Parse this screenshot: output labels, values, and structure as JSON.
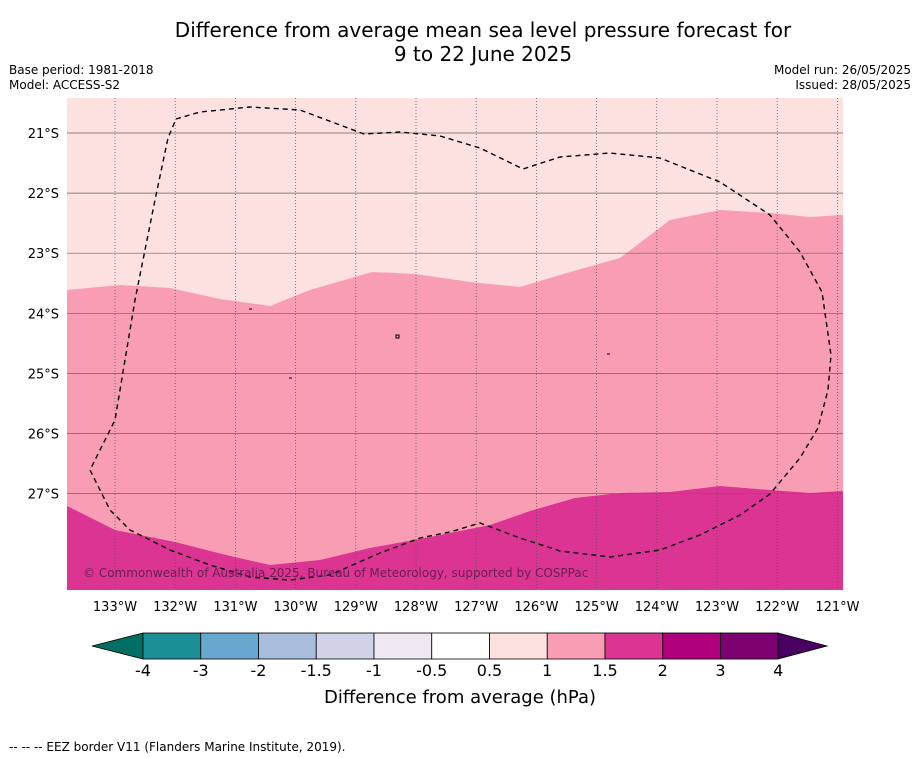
{
  "header": {
    "title_line1": "Difference from average mean sea level pressure forecast for",
    "title_line2": "9 to 22 June 2025",
    "base_period": "Base period: 1981-2018",
    "model": "Model: ACCESS-S2",
    "model_run": "Model run: 26/05/2025",
    "issued": "Issued: 28/05/2025"
  },
  "map": {
    "lon_labels": [
      "133°W",
      "132°W",
      "131°W",
      "130°W",
      "129°W",
      "128°W",
      "127°W",
      "126°W",
      "125°W",
      "124°W",
      "123°W",
      "122°W",
      "121°W"
    ],
    "lat_labels": [
      "21°S",
      "22°S",
      "23°S",
      "24°S",
      "25°S",
      "26°S",
      "27°S"
    ],
    "copyright": "© Commonwealth of Australia 2025, Bureau of Meteorology, supported by COSPPac"
  },
  "colorbar": {
    "tick_labels": [
      "-4",
      "-3",
      "-2",
      "-1.5",
      "-1",
      "-0.5",
      "0.5",
      "1",
      "1.5",
      "2",
      "3",
      "4"
    ],
    "label": "Difference from average (hPa)",
    "colors": [
      "#1a8f95",
      "#68a8d0",
      "#a8bcdc",
      "#d0d2e8",
      "#eee8f2",
      "#ffffff",
      "#fde0e0",
      "#f99db5",
      "#db3493",
      "#b0007c",
      "#7b0070"
    ],
    "under_color": "#006e62",
    "over_color": "#4a0062"
  },
  "fill_colors": {
    "band_0_5_to_1": "#fde0e0",
    "band_1_to_1_5": "#f99db5",
    "band_1_5_to_2": "#db3493"
  },
  "legend": {
    "eez_line": "--  --  -- EEZ border V11 (Flanders Marine Institute, 2019)."
  }
}
